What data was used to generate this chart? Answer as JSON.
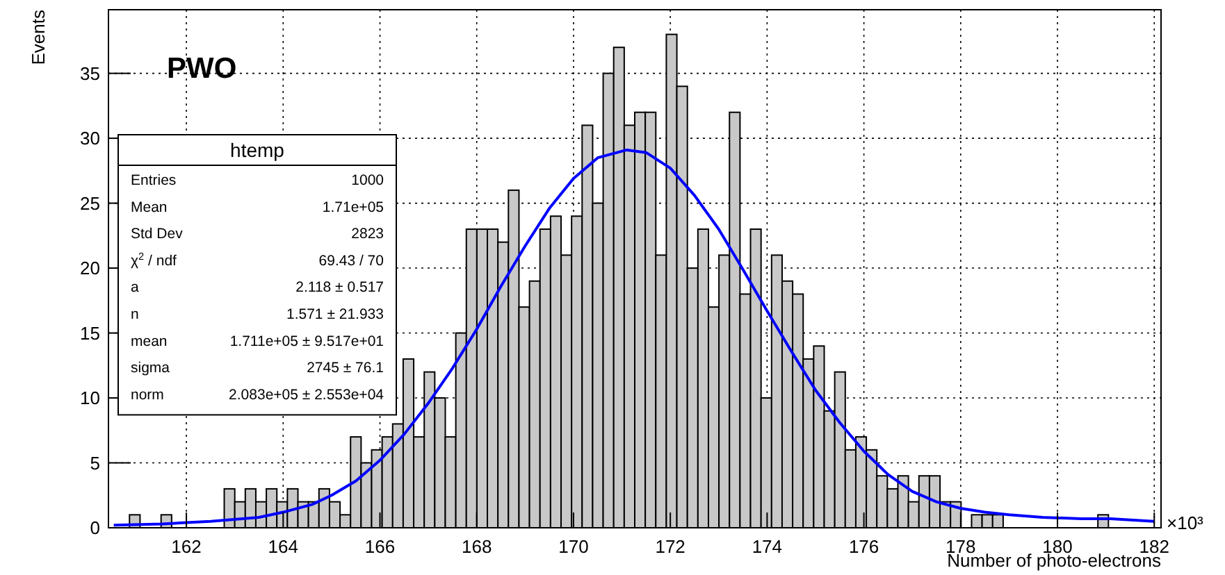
{
  "chart_data": {
    "type": "histogram",
    "title": "PWO",
    "xlabel": "Number of photo-electrons",
    "ylabel": "Events",
    "annotations": [
      "×10³",
      "htemp",
      "Entries",
      "1000",
      "Mean",
      "1.71e+05",
      "Std Dev",
      "2823",
      "χ$^{2}$ / ndf",
      "69.43 / 70",
      "a",
      "2.118 ± 0.517",
      "n",
      "1.571 ± 21.933",
      "mean",
      "1.711e+05 ± 9.517e+01",
      "sigma",
      "2745 ± 76.1",
      "norm",
      "2.083e+05 ± 2.553e+04"
    ],
    "bins": [
      160.39,
      160.6075,
      160.825,
      161.0425,
      161.26,
      161.4775,
      161.695,
      161.9125,
      162.13,
      162.3475,
      162.565,
      162.7825,
      163.0,
      163.2175,
      163.435,
      163.6525,
      163.87,
      164.0875,
      164.305,
      164.5225,
      164.74,
      164.9575,
      165.175,
      165.3925,
      165.61,
      165.8275,
      166.045,
      166.2625,
      166.48,
      166.6975,
      166.915,
      167.1325,
      167.35,
      167.5675,
      167.785,
      168.0025,
      168.22,
      168.4375,
      168.655,
      168.8725,
      169.09,
      169.3075,
      169.525,
      169.7425,
      169.96,
      170.1775,
      170.395,
      170.6125,
      170.83,
      171.0475,
      171.265,
      171.4825,
      171.7,
      171.9175,
      172.135,
      172.3525,
      172.57,
      172.7875,
      173.005,
      173.2225,
      173.44,
      173.6575,
      173.875,
      174.0925,
      174.31,
      174.5275,
      174.745,
      174.9625,
      175.18,
      175.3975,
      175.615,
      175.8325,
      176.05,
      176.2675,
      176.485,
      176.7025,
      176.92,
      177.1375,
      177.355,
      177.5725,
      177.79,
      178.0075,
      178.225,
      178.4425,
      178.66,
      178.8775,
      179.095,
      179.3125,
      179.53,
      179.7475,
      179.965,
      180.1825,
      180.4,
      180.6175,
      180.835,
      181.0525,
      181.27,
      181.4875,
      181.705,
      181.9225,
      182.14
    ],
    "series": [
      {
        "color": "#c8c8c8",
        "values": [
          0,
          0,
          1,
          0,
          0,
          1,
          0,
          0,
          0,
          0,
          0,
          3,
          2,
          3,
          2,
          3,
          2,
          3,
          2,
          2,
          3,
          2,
          1,
          7,
          5,
          6,
          7,
          8,
          13,
          7,
          12,
          10,
          7,
          15,
          23,
          23,
          23,
          22,
          26,
          17,
          19,
          23,
          24,
          21,
          24,
          31,
          25,
          35,
          37,
          31,
          32,
          32,
          21,
          38,
          34,
          20,
          23,
          17,
          21,
          32,
          18,
          23,
          10,
          21,
          19,
          18,
          13,
          14,
          9,
          12,
          6,
          7,
          6,
          4,
          3,
          4,
          2,
          4,
          4,
          2,
          2,
          0,
          1,
          1,
          1,
          0,
          0,
          0,
          0,
          0,
          0,
          0,
          0,
          0,
          1,
          0,
          0,
          0,
          0,
          0
        ]
      },
      {
        "type": "line",
        "color": "#0000ff",
        "x": [
          160.5,
          161.5,
          162.5,
          163.5,
          164.0,
          164.6,
          165.0,
          165.5,
          166.0,
          166.5,
          167.0,
          167.5,
          168.0,
          168.5,
          169.0,
          169.5,
          170.0,
          170.5,
          171.1,
          171.5,
          172.0,
          172.5,
          173.0,
          173.5,
          174.0,
          174.5,
          175.0,
          175.5,
          176.0,
          176.5,
          177.0,
          177.5,
          178.0,
          178.5,
          179.0,
          179.7,
          180.5,
          181.1,
          182.0
        ],
        "values": [
          0.2,
          0.3,
          0.5,
          0.8,
          1.2,
          1.8,
          2.5,
          3.6,
          5.2,
          7.2,
          9.6,
          12.3,
          15.3,
          18.6,
          21.7,
          24.6,
          26.9,
          28.5,
          29.1,
          28.9,
          27.7,
          25.6,
          23.0,
          19.9,
          16.7,
          13.6,
          10.6,
          8.1,
          5.9,
          4.1,
          2.8,
          2.0,
          1.5,
          1.2,
          1.0,
          0.8,
          0.7,
          0.7,
          0.5
        ]
      }
    ],
    "xlim": [
      160.39,
      182.14
    ],
    "ylim": [
      0,
      39.9
    ],
    "xticks": [
      162,
      164,
      166,
      168,
      170,
      172,
      174,
      176,
      178,
      180,
      182
    ],
    "yticks": [
      0,
      5,
      10,
      15,
      20,
      25,
      30,
      35
    ],
    "grid": true,
    "line_style": "solid",
    "marker": "none"
  }
}
